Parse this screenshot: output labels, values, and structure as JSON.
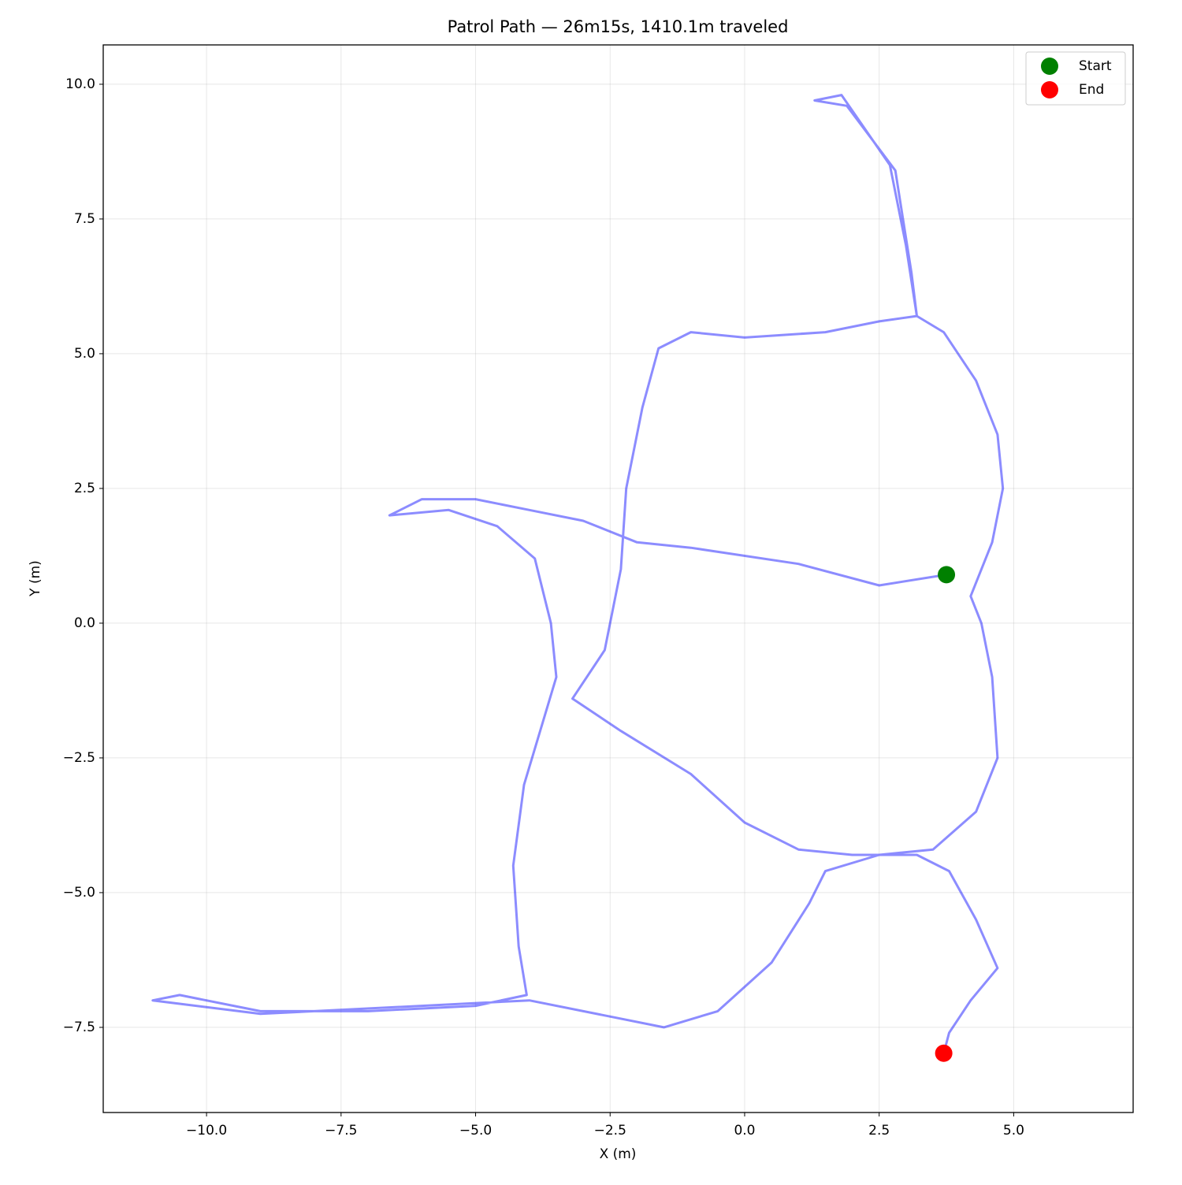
{
  "chart_data": {
    "type": "line",
    "title": "Patrol Path — 26m15s, 1410.1m traveled",
    "xlabel": "X (m)",
    "ylabel": "Y (m)",
    "x": [
      3.75,
      2.5,
      1,
      -1,
      -2,
      -3,
      -4,
      -5,
      -6,
      -6.6,
      -5.5,
      -4.6,
      -3.9,
      -3.6,
      -3.5,
      -3.8,
      -4.1,
      -4.3,
      -4.2,
      -4.05,
      -5,
      -7,
      -9,
      -10.5,
      -11,
      -9,
      -6,
      -4,
      -2.5,
      -1.5,
      -0.5,
      0.5,
      1.2,
      1.5,
      2.5,
      3.5,
      4.3,
      4.7,
      4.6,
      4.4,
      4.2,
      4.6,
      4.8,
      4.7,
      4.3,
      3.7,
      3.2,
      3.0,
      2.7,
      1.8,
      1.3,
      1.9,
      2.8,
      3.1,
      3.2,
      2.5,
      1.5,
      0,
      -1,
      -1.6,
      -1.9,
      -2.2,
      -2.3,
      -2.6,
      -3.2,
      -2.3,
      -1,
      0,
      1,
      2,
      3.2,
      3.8,
      4.3,
      4.7,
      4.2,
      3.8,
      3.7
    ],
    "y": [
      0.9,
      0.7,
      1.1,
      1.4,
      1.5,
      1.9,
      2.1,
      2.3,
      2.3,
      2.0,
      2.1,
      1.8,
      1.2,
      0,
      -1,
      -2,
      -3,
      -4.5,
      -6,
      -6.9,
      -7.1,
      -7.2,
      -7.2,
      -6.9,
      -7.0,
      -7.25,
      -7.1,
      -7,
      -7.3,
      -7.5,
      -7.2,
      -6.3,
      -5.2,
      -4.6,
      -4.3,
      -4.2,
      -3.5,
      -2.5,
      -1,
      0,
      0.5,
      1.5,
      2.5,
      3.5,
      4.5,
      5.4,
      5.7,
      7.0,
      8.5,
      9.8,
      9.7,
      9.6,
      8.4,
      6.5,
      5.7,
      5.6,
      5.4,
      5.3,
      5.4,
      5.1,
      4,
      2.5,
      1,
      -0.5,
      -1.4,
      -2.0,
      -2.8,
      -3.7,
      -4.2,
      -4.3,
      -4.3,
      -4.6,
      -5.5,
      -6.4,
      -7.0,
      -7.6,
      -7.98
    ],
    "color": "#0000ff",
    "markers": [
      {
        "name": "Start",
        "color": "#008000",
        "x": 3.75,
        "y": 0.9
      },
      {
        "name": "End",
        "color": "#ff0000",
        "x": 3.7,
        "y": -7.98
      }
    ],
    "xlim": [
      -11.92,
      7.22
    ],
    "ylim": [
      -9.08,
      10.73
    ],
    "xticks": [
      {
        "value": -10,
        "label": "−10.0"
      },
      {
        "value": -7.5,
        "label": "−7.5"
      },
      {
        "value": -5,
        "label": "−5.0"
      },
      {
        "value": -2.5,
        "label": "−2.5"
      },
      {
        "value": 0,
        "label": "0.0"
      },
      2.5,
      {
        "value": 5,
        "label": "5.0"
      }
    ],
    "yticks": [
      {
        "value": -7.5,
        "label": "−7.5"
      },
      {
        "value": -5,
        "label": "−5.0"
      },
      {
        "value": -2.5,
        "label": "−2.5"
      },
      {
        "value": 0,
        "label": "0.0"
      },
      2.5,
      {
        "value": 5,
        "label": "5.0"
      },
      7.5,
      {
        "value": 10,
        "label": "10.0"
      }
    ],
    "grid": true,
    "legend": "upper-right"
  }
}
